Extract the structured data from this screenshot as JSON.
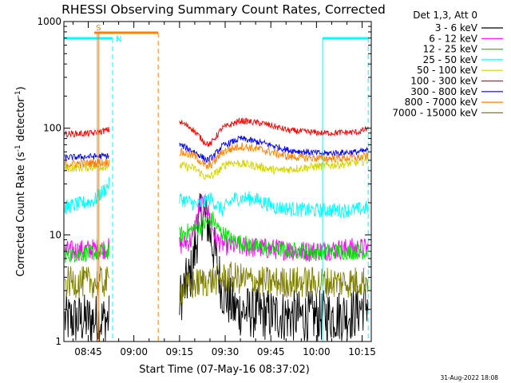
{
  "chart_data": {
    "type": "line",
    "title": "RHESSI Observing Summary Count Rates, Corrected",
    "xlabel": "Start Time (07-May-16 08:37:02)",
    "ylabel_main": "Corrected Count Rate (s",
    "ylabel_sup1": "-1",
    "ylabel_mid": " detector",
    "ylabel_sup2": "-1",
    "ylabel_end": ")",
    "yscale": "log",
    "ylim": [
      1,
      1000
    ],
    "yticks": [
      {
        "v": 1,
        "label": "1"
      },
      {
        "v": 10,
        "label": "10"
      },
      {
        "v": 100,
        "label": "100"
      },
      {
        "v": 1000,
        "label": "1000"
      }
    ],
    "xlim_minutes": [
      0,
      101
    ],
    "xticks": [
      {
        "m": 8,
        "label": "08:45"
      },
      {
        "m": 23,
        "label": "09:00"
      },
      {
        "m": 38,
        "label": "09:15"
      },
      {
        "m": 53,
        "label": "09:30"
      },
      {
        "m": 68,
        "label": "09:45"
      },
      {
        "m": 83,
        "label": "10:00"
      },
      {
        "m": 98,
        "label": "10:15"
      }
    ],
    "legend_header": "Det 1,3, Att 0",
    "data_gap_minutes": [
      15,
      38
    ],
    "series": [
      {
        "name": "3 - 6 keV",
        "color": "#000000",
        "keyframes": [
          [
            0,
            1.6
          ],
          [
            15,
            1.6
          ],
          [
            38,
            2.5
          ],
          [
            42,
            4.5
          ],
          [
            45,
            16
          ],
          [
            47,
            14
          ],
          [
            50,
            6
          ],
          [
            52,
            3
          ],
          [
            56,
            2
          ],
          [
            65,
            1.8
          ],
          [
            80,
            1.7
          ],
          [
            95,
            1.8
          ],
          [
            100,
            2.4
          ]
        ],
        "noise": 0.25
      },
      {
        "name": "6 - 12 keV",
        "color": "#ff00ff",
        "keyframes": [
          [
            0,
            7
          ],
          [
            15,
            7.5
          ],
          [
            38,
            8
          ],
          [
            42,
            9
          ],
          [
            45,
            20
          ],
          [
            47,
            18
          ],
          [
            50,
            9
          ],
          [
            53,
            8
          ],
          [
            65,
            7.5
          ],
          [
            80,
            7
          ],
          [
            95,
            7.5
          ],
          [
            100,
            7.5
          ]
        ],
        "noise": 0.1
      },
      {
        "name": "12 - 25 keV",
        "color": "#00e000",
        "keyframes": [
          [
            0,
            6.5
          ],
          [
            15,
            7
          ],
          [
            38,
            10
          ],
          [
            45,
            12
          ],
          [
            49,
            14
          ],
          [
            51,
            11
          ],
          [
            55,
            9
          ],
          [
            65,
            7.5
          ],
          [
            80,
            7
          ],
          [
            95,
            7
          ],
          [
            100,
            7
          ]
        ],
        "noise": 0.08
      },
      {
        "name": "25 - 50 keV",
        "color": "#00ffff",
        "keyframes": [
          [
            0,
            18
          ],
          [
            10,
            21
          ],
          [
            15,
            30
          ],
          [
            38,
            22
          ],
          [
            44,
            19
          ],
          [
            48,
            22
          ],
          [
            52,
            17
          ],
          [
            56,
            22
          ],
          [
            62,
            22
          ],
          [
            70,
            18
          ],
          [
            80,
            17
          ],
          [
            95,
            17
          ],
          [
            100,
            18
          ]
        ],
        "noise": 0.07
      },
      {
        "name": "50 - 100 keV",
        "color": "#d4d400",
        "keyframes": [
          [
            0,
            42
          ],
          [
            15,
            44
          ],
          [
            38,
            45
          ],
          [
            43,
            42
          ],
          [
            47,
            34
          ],
          [
            50,
            38
          ],
          [
            54,
            48
          ],
          [
            62,
            45
          ],
          [
            70,
            40
          ],
          [
            80,
            43
          ],
          [
            95,
            47
          ],
          [
            100,
            50
          ]
        ],
        "noise": 0.04
      },
      {
        "name": "100 - 300 keV",
        "color": "#ff0000",
        "keyframes": [
          [
            0,
            88
          ],
          [
            10,
            90
          ],
          [
            15,
            97
          ],
          [
            38,
            115
          ],
          [
            42,
            100
          ],
          [
            46,
            75
          ],
          [
            48,
            70
          ],
          [
            52,
            100
          ],
          [
            58,
            118
          ],
          [
            66,
            110
          ],
          [
            74,
            95
          ],
          [
            85,
            90
          ],
          [
            97,
            92
          ],
          [
            100,
            100
          ]
        ],
        "noise": 0.03
      },
      {
        "name": "300 - 800 keV",
        "color": "#0000ff",
        "keyframes": [
          [
            0,
            53
          ],
          [
            15,
            55
          ],
          [
            38,
            70
          ],
          [
            43,
            60
          ],
          [
            47,
            50
          ],
          [
            49,
            54
          ],
          [
            52,
            68
          ],
          [
            58,
            80
          ],
          [
            66,
            72
          ],
          [
            74,
            62
          ],
          [
            85,
            58
          ],
          [
            97,
            60
          ],
          [
            100,
            62
          ]
        ],
        "noise": 0.03
      },
      {
        "name": "800 - 7000 keV",
        "color": "#ff8000",
        "keyframes": [
          [
            0,
            46
          ],
          [
            15,
            48
          ],
          [
            38,
            60
          ],
          [
            43,
            55
          ],
          [
            47,
            43
          ],
          [
            49,
            47
          ],
          [
            52,
            60
          ],
          [
            58,
            68
          ],
          [
            66,
            62
          ],
          [
            74,
            54
          ],
          [
            85,
            52
          ],
          [
            97,
            53
          ],
          [
            100,
            55
          ]
        ],
        "noise": 0.04
      },
      {
        "name": "7000 - 15000 keV",
        "color": "#808000",
        "keyframes": [
          [
            0,
            3.6
          ],
          [
            15,
            3.6
          ],
          [
            38,
            3
          ],
          [
            45,
            3.6
          ],
          [
            55,
            4
          ],
          [
            65,
            3.6
          ],
          [
            80,
            3.6
          ],
          [
            95,
            3.6
          ],
          [
            100,
            3.8
          ]
        ],
        "noise": 0.15
      }
    ],
    "saa_label": "S",
    "night_label": "N",
    "saa_color": "#ff8000",
    "night_color": "#00ffff",
    "saa_bar_minutes": [
      10,
      31
    ],
    "saa_dashed_minutes": [
      31
    ],
    "saa_solid_minutes": [
      11,
      11.5
    ],
    "night_bars_minutes": [
      [
        0,
        16
      ],
      [
        85,
        100
      ]
    ],
    "night_dashed_minutes": [
      16,
      100
    ],
    "night_solid_minutes": [
      85
    ]
  },
  "footer_date": "31-Aug-2022 18:08"
}
